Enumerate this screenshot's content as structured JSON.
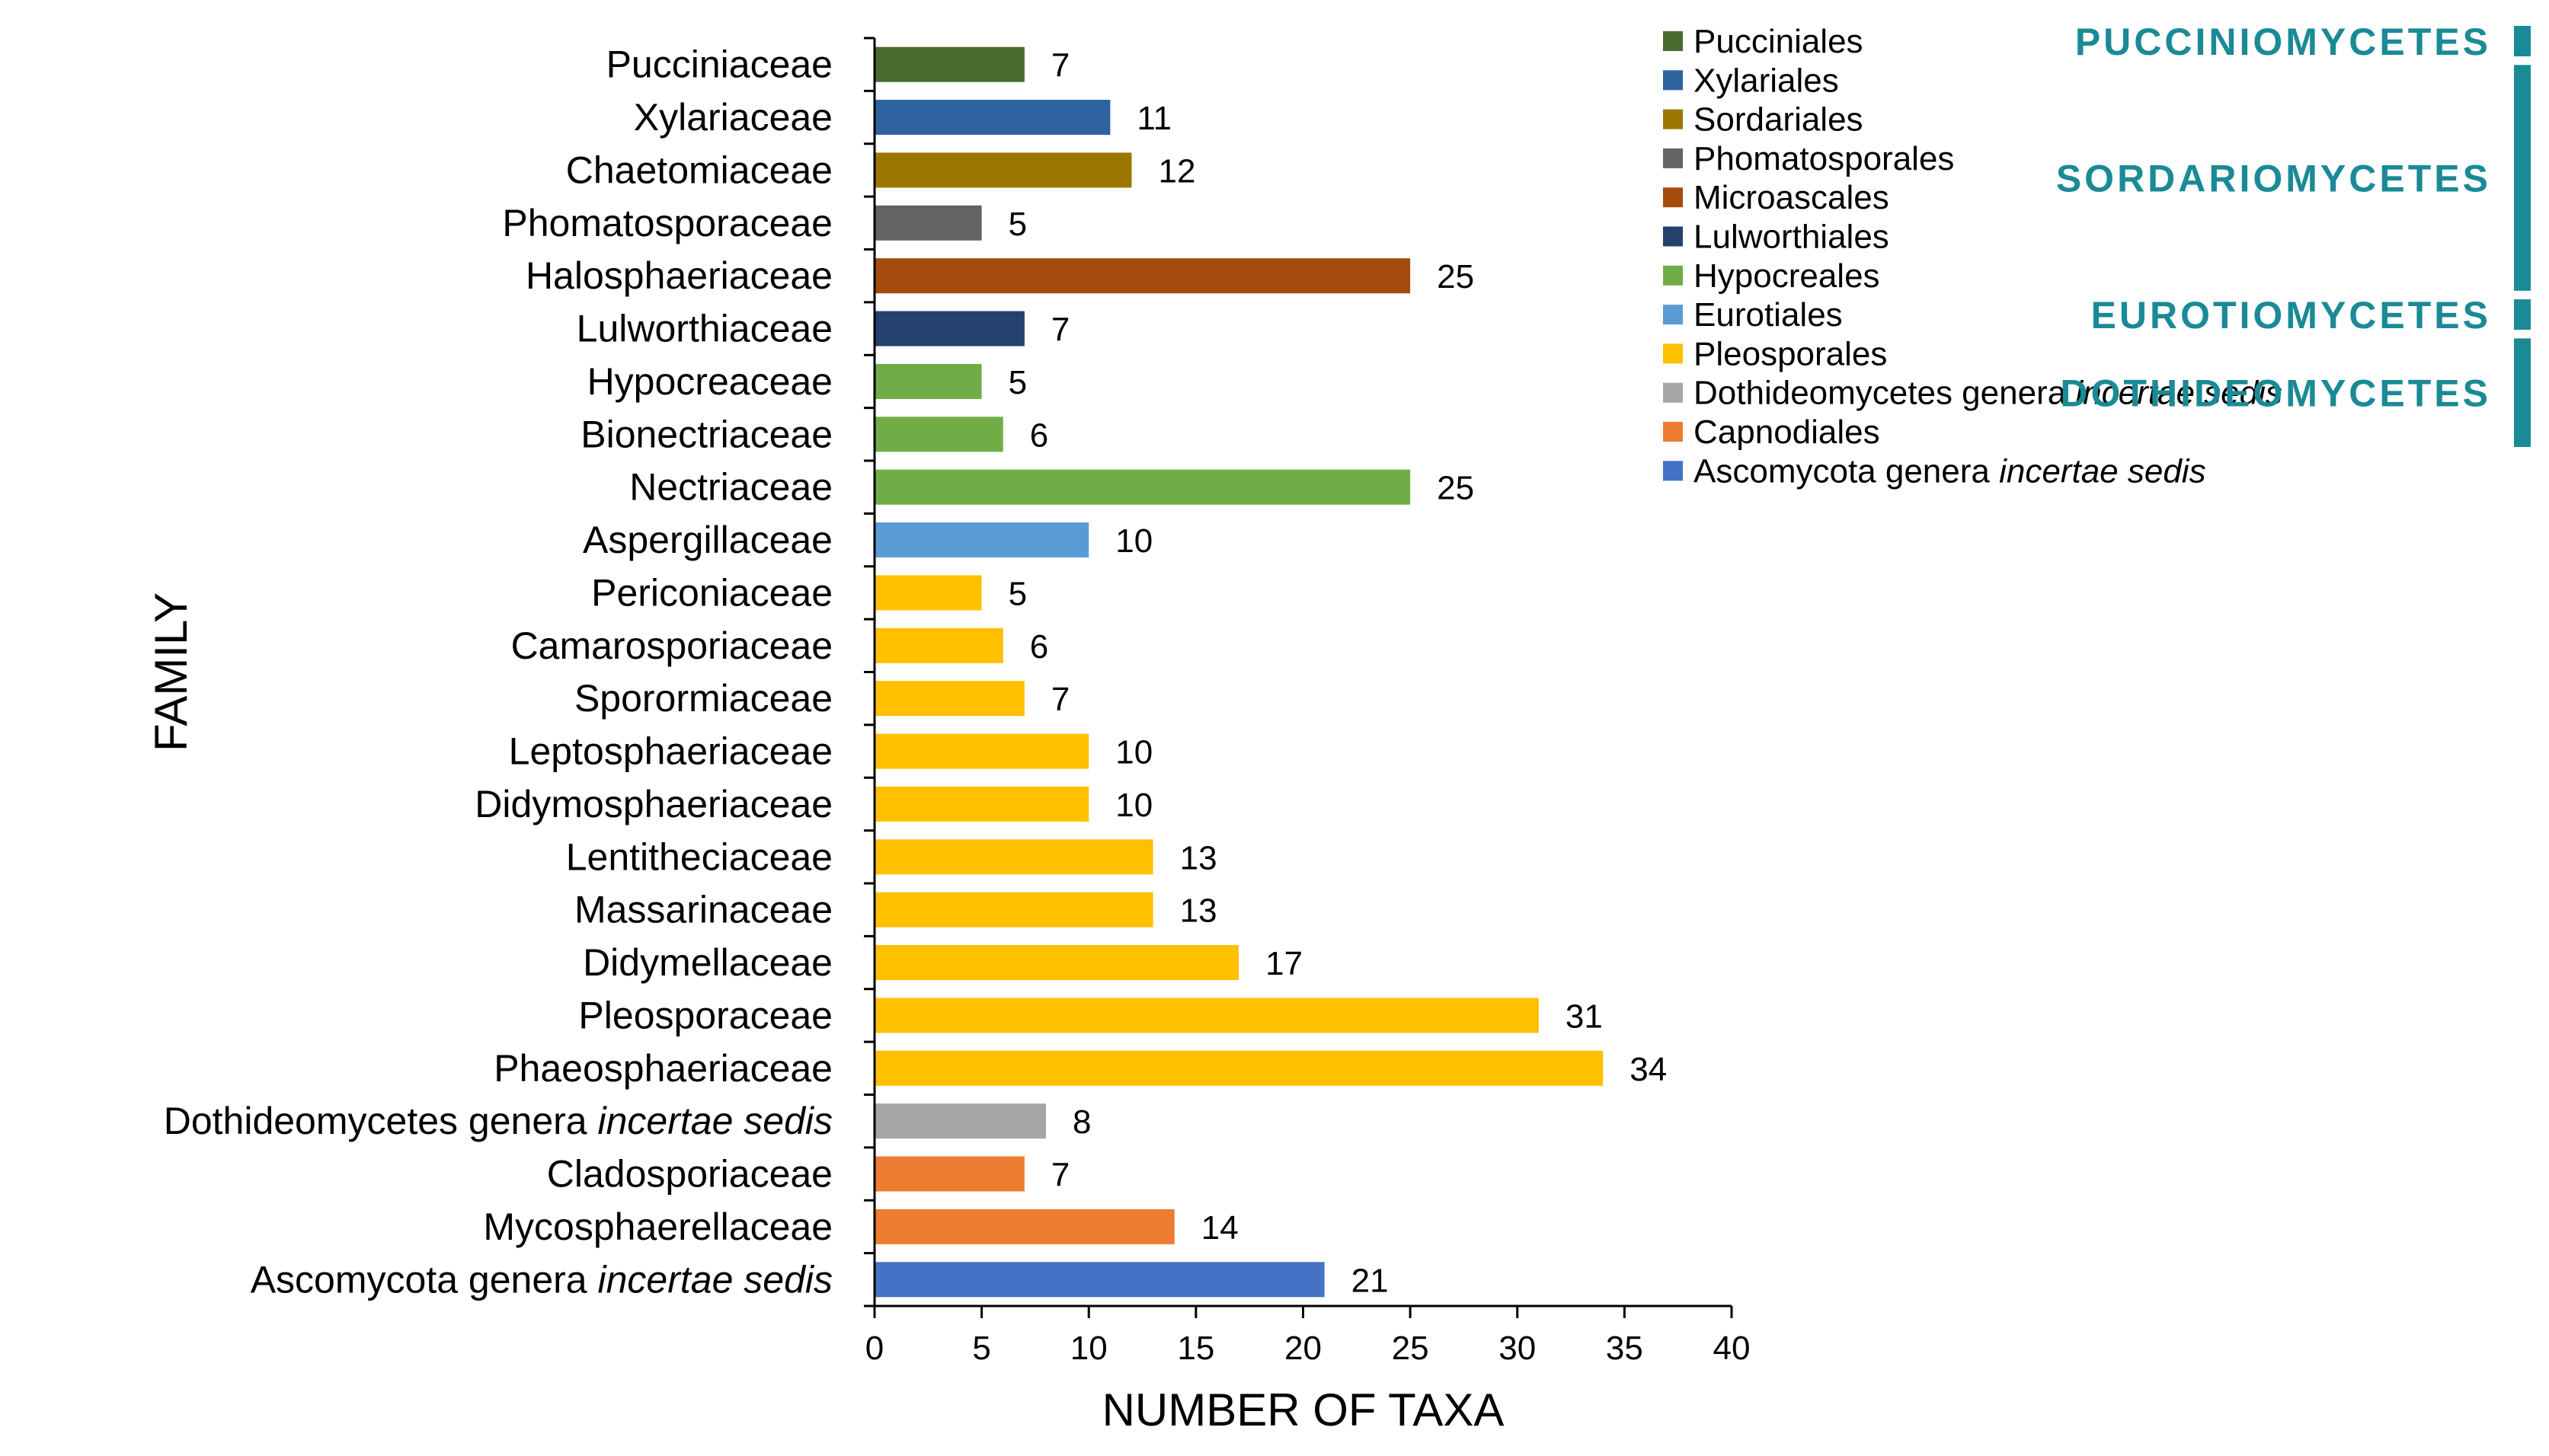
{
  "chart_data": {
    "type": "bar",
    "orientation": "horizontal",
    "title": "",
    "xlabel": "NUMBER OF TAXA",
    "ylabel": "FAMILY",
    "xlim": [
      0,
      40
    ],
    "xticks": [
      0,
      5,
      10,
      15,
      20,
      25,
      30,
      35,
      40
    ],
    "grid": false,
    "legend_position": "top-right",
    "categories": [
      {
        "name": "Pucciniaceae",
        "value": 7,
        "order": "Pucciniales"
      },
      {
        "name": "Xylariaceae",
        "value": 11,
        "order": "Xylariales"
      },
      {
        "name": "Chaetomiaceae",
        "value": 12,
        "order": "Sordariales"
      },
      {
        "name": "Phomatosporaceae",
        "value": 5,
        "order": "Phomatosporales"
      },
      {
        "name": "Halosphaeriaceae",
        "value": 25,
        "order": "Microascales"
      },
      {
        "name": "Lulworthiaceae",
        "value": 7,
        "order": "Lulworthiales"
      },
      {
        "name": "Hypocreaceae",
        "value": 5,
        "order": "Hypocreales"
      },
      {
        "name": "Bionectriaceae",
        "value": 6,
        "order": "Hypocreales"
      },
      {
        "name": "Nectriaceae",
        "value": 25,
        "order": "Hypocreales"
      },
      {
        "name": "Aspergillaceae",
        "value": 10,
        "order": "Eurotiales"
      },
      {
        "name": "Periconiaceae",
        "value": 5,
        "order": "Pleosporales"
      },
      {
        "name": "Camarosporiaceae",
        "value": 6,
        "order": "Pleosporales"
      },
      {
        "name": "Sporormiaceae",
        "value": 7,
        "order": "Pleosporales"
      },
      {
        "name": "Leptosphaeriaceae",
        "value": 10,
        "order": "Pleosporales"
      },
      {
        "name": "Didymosphaeriaceae",
        "value": 10,
        "order": "Pleosporales"
      },
      {
        "name": "Lentitheciaceae",
        "value": 13,
        "order": "Pleosporales"
      },
      {
        "name": "Massarinaceae",
        "value": 13,
        "order": "Pleosporales"
      },
      {
        "name": "Didymellaceae",
        "value": 17,
        "order": "Pleosporales"
      },
      {
        "name": "Pleosporaceae",
        "value": 31,
        "order": "Pleosporales"
      },
      {
        "name": "Phaeosphaeriaceae",
        "value": 34,
        "order": "Pleosporales"
      },
      {
        "name": "Dothideomycetes genera ",
        "italic": "incertae sedis",
        "value": 8,
        "order": "Dothideomycetes genera incertae sedis"
      },
      {
        "name": "Cladosporiaceae",
        "value": 7,
        "order": "Capnodiales"
      },
      {
        "name": "Mycosphaerellaceae",
        "value": 14,
        "order": "Capnodiales"
      },
      {
        "name": "Ascomycota genera ",
        "italic": "incertae sedis",
        "value": 21,
        "order": "Ascomycota genera incertae sedis"
      }
    ],
    "legend": [
      {
        "key": "Pucciniales",
        "label": "Pucciniales",
        "italic": "",
        "color": "#4a6b2e"
      },
      {
        "key": "Xylariales",
        "label": "Xylariales",
        "italic": "",
        "color": "#2e63a0"
      },
      {
        "key": "Sordariales",
        "label": "Sordariales",
        "italic": "",
        "color": "#9c7700"
      },
      {
        "key": "Phomatosporales",
        "label": "Phomatosporales",
        "italic": "",
        "color": "#636363"
      },
      {
        "key": "Microascales",
        "label": "Microascales",
        "italic": "",
        "color": "#a64b0e"
      },
      {
        "key": "Lulworthiales",
        "label": "Lulworthiales",
        "italic": "",
        "color": "#24406f"
      },
      {
        "key": "Hypocreales",
        "label": "Hypocreales",
        "italic": "",
        "color": "#70ad47"
      },
      {
        "key": "Eurotiales",
        "label": "Eurotiales",
        "italic": "",
        "color": "#5b9bd5"
      },
      {
        "key": "Pleosporales",
        "label": "Pleosporales",
        "italic": "",
        "color": "#ffc000"
      },
      {
        "key": "Dothideomycetes genera incertae sedis",
        "label": "Dothideomycetes genera ",
        "italic": "incertae sedis",
        "color": "#a5a5a5"
      },
      {
        "key": "Capnodiales",
        "label": "Capnodiales",
        "italic": "",
        "color": "#ed7d31"
      },
      {
        "key": "Ascomycota genera incertae sedis",
        "label": "Ascomycota genera ",
        "italic": "incertae sedis",
        "color": "#4472c4"
      }
    ],
    "classes": [
      {
        "label": "PUCCINIOMYCETES",
        "legend_from": 0,
        "legend_to": 0
      },
      {
        "label": "SORDARIOMYCETES",
        "legend_from": 1,
        "legend_to": 6
      },
      {
        "label": "EUROTIOMYCETES",
        "legend_from": 7,
        "legend_to": 7
      },
      {
        "label": "DOTHIDEOMYCETES",
        "legend_from": 8,
        "legend_to": 10
      }
    ],
    "class_color": "#1a8a96"
  }
}
